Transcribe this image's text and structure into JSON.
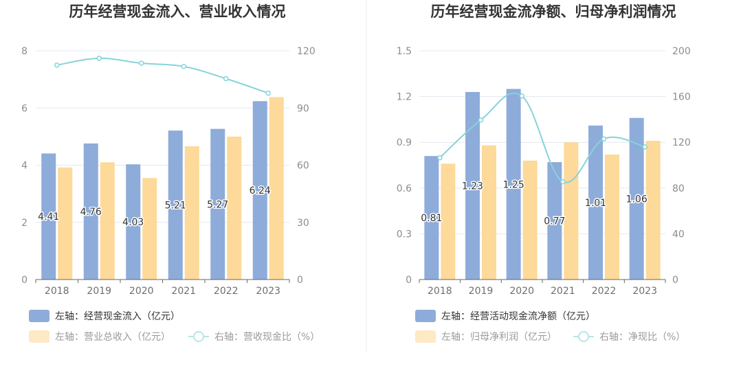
{
  "colors": {
    "cash_inflow": "#8eacd9",
    "revenue": "#fdd99a",
    "ratio_line": "#86d3d9",
    "grid": "#e4e7ef",
    "axis": "#666666",
    "divider": "#eeeeee",
    "legend_active": "#333333",
    "legend_inactive": "#9a9a9a"
  },
  "chart_data": [
    {
      "type": "bar",
      "title": "历年经营现金流入、营业收入情况",
      "categories": [
        "2018",
        "2019",
        "2020",
        "2021",
        "2022",
        "2023"
      ],
      "left_axis": {
        "ylim": [
          0,
          8
        ],
        "ticks": [
          "0",
          "2",
          "4",
          "6",
          "8"
        ]
      },
      "right_axis": {
        "ylim": [
          0,
          120
        ],
        "ticks": [
          "0",
          "30",
          "60",
          "90",
          "120"
        ]
      },
      "series": [
        {
          "name": "左轴：经营现金流入（亿元）",
          "type": "bar",
          "axis": "left",
          "color": "#8eacd9",
          "values": [
            4.41,
            4.76,
            4.03,
            5.21,
            5.27,
            6.24
          ],
          "labels": [
            "4.41",
            "4.76",
            "4.03",
            "5.21",
            "5.27",
            "6.24"
          ]
        },
        {
          "name": "左轴：营业总收入（亿元）",
          "type": "bar",
          "axis": "left",
          "color": "#fdd99a",
          "values": [
            3.92,
            4.1,
            3.55,
            4.66,
            5.0,
            6.38
          ]
        },
        {
          "name": "右轴：营收现金比（%）",
          "type": "line",
          "axis": "right",
          "color": "#86d3d9",
          "values": [
            112.5,
            116.1,
            113.5,
            111.8,
            105.4,
            97.8
          ]
        }
      ],
      "legend": "bottom"
    },
    {
      "type": "bar",
      "title": "历年经营现金流净额、归母净利润情况",
      "categories": [
        "2018",
        "2019",
        "2020",
        "2021",
        "2022",
        "2023"
      ],
      "left_axis": {
        "ylim": [
          0,
          1.5
        ],
        "ticks": [
          "0",
          "0.3",
          "0.6",
          "0.9",
          "1.2",
          "1.5"
        ]
      },
      "right_axis": {
        "ylim": [
          0,
          200
        ],
        "ticks": [
          "0",
          "40",
          "80",
          "120",
          "160",
          "200"
        ]
      },
      "series": [
        {
          "name": "左轴：经营活动现金流净额（亿元）",
          "type": "bar",
          "axis": "left",
          "color": "#8eacd9",
          "values": [
            0.81,
            1.23,
            1.25,
            0.77,
            1.01,
            1.06
          ],
          "labels": [
            "0.81",
            "1.23",
            "1.25",
            "0.77",
            "1.01",
            "1.06"
          ]
        },
        {
          "name": "左轴：归母净利润（亿元）",
          "type": "bar",
          "axis": "left",
          "color": "#fdd99a",
          "values": [
            0.76,
            0.88,
            0.78,
            0.9,
            0.82,
            0.91
          ]
        },
        {
          "name": "右轴：净现比（%）",
          "type": "line",
          "axis": "right",
          "color": "#86d3d9",
          "values": [
            106.5,
            139.5,
            160.5,
            85.5,
            123.0,
            116.0
          ]
        }
      ],
      "legend": "bottom"
    }
  ]
}
